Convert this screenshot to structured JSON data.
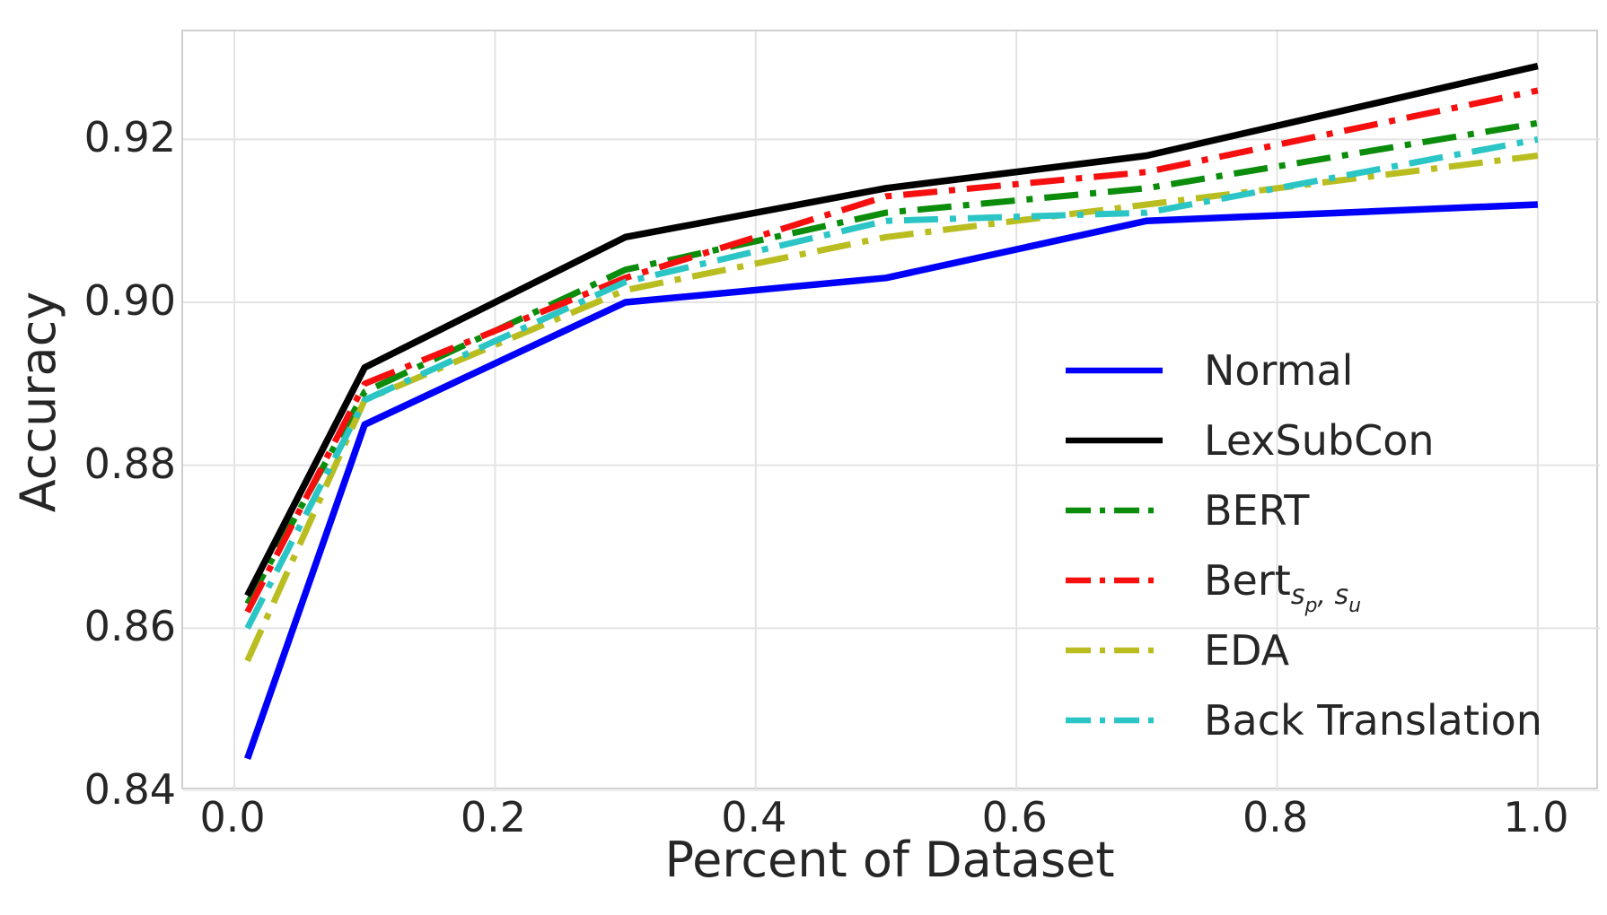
{
  "style": {
    "background": "#ffffff",
    "grid_color": "#e3e3e3",
    "spine_color": "#cfcfcf",
    "text_color": "#262626"
  },
  "chart_data": {
    "type": "line",
    "title": "",
    "xlabel": "Percent of Dataset",
    "ylabel": "Accuracy",
    "x": [
      0.01,
      0.1,
      0.3,
      0.5,
      0.7,
      1.0
    ],
    "xlim": [
      -0.0393,
      1.0476
    ],
    "ylim": [
      0.84,
      0.93325
    ],
    "x_ticks": [
      0.0,
      0.2,
      0.4,
      0.6,
      0.8,
      1.0
    ],
    "x_tick_labels": [
      "0.0",
      "0.2",
      "0.4",
      "0.6",
      "0.8",
      "1.0"
    ],
    "y_ticks": [
      0.84,
      0.86,
      0.88,
      0.9,
      0.92
    ],
    "y_tick_labels": [
      "0.84",
      "0.86",
      "0.88",
      "0.90",
      "0.92"
    ],
    "grid": true,
    "legend_position": "center right",
    "legend_frame": false,
    "series": [
      {
        "name": "Normal",
        "color": "#0000fa",
        "line_style": "solid",
        "values": [
          0.844,
          0.885,
          0.9,
          0.903,
          0.91,
          0.912
        ],
        "label_parts": [
          {
            "t": "Normal",
            "k": "n"
          }
        ]
      },
      {
        "name": "LexSubCon",
        "color": "#000000",
        "line_style": "solid",
        "values": [
          0.864,
          0.892,
          0.908,
          0.914,
          0.918,
          0.929
        ],
        "label_parts": [
          {
            "t": "LexSubCon",
            "k": "n"
          }
        ]
      },
      {
        "name": "BERT",
        "color": "#0b8c0b",
        "line_style": "dashdot",
        "values": [
          0.863,
          0.889,
          0.904,
          0.911,
          0.914,
          0.922
        ],
        "label_parts": [
          {
            "t": "BERT",
            "k": "n"
          }
        ]
      },
      {
        "name": "Bert_sp_su",
        "color": "#f50f0f",
        "line_style": "dashdot",
        "values": [
          0.862,
          0.89,
          0.903,
          0.913,
          0.916,
          0.926
        ],
        "label_parts": [
          {
            "t": "Bert",
            "k": "n"
          },
          {
            "t": "s",
            "k": "s"
          },
          {
            "t": "p",
            "k": "ss"
          },
          {
            "t": ", ",
            "k": "s"
          },
          {
            "t": "s",
            "k": "s"
          },
          {
            "t": "u",
            "k": "ss"
          }
        ]
      },
      {
        "name": "EDA",
        "color": "#b9bd20",
        "line_style": "dashdot",
        "values": [
          0.856,
          0.888,
          0.9015,
          0.908,
          0.912,
          0.918
        ],
        "label_parts": [
          {
            "t": "EDA",
            "k": "n"
          }
        ]
      },
      {
        "name": "Back Translation",
        "color": "#2bc5c5",
        "line_style": "dashdot",
        "values": [
          0.86,
          0.888,
          0.9025,
          0.91,
          0.911,
          0.92
        ],
        "label_parts": [
          {
            "t": "Back Translation",
            "k": "n"
          }
        ]
      }
    ]
  }
}
